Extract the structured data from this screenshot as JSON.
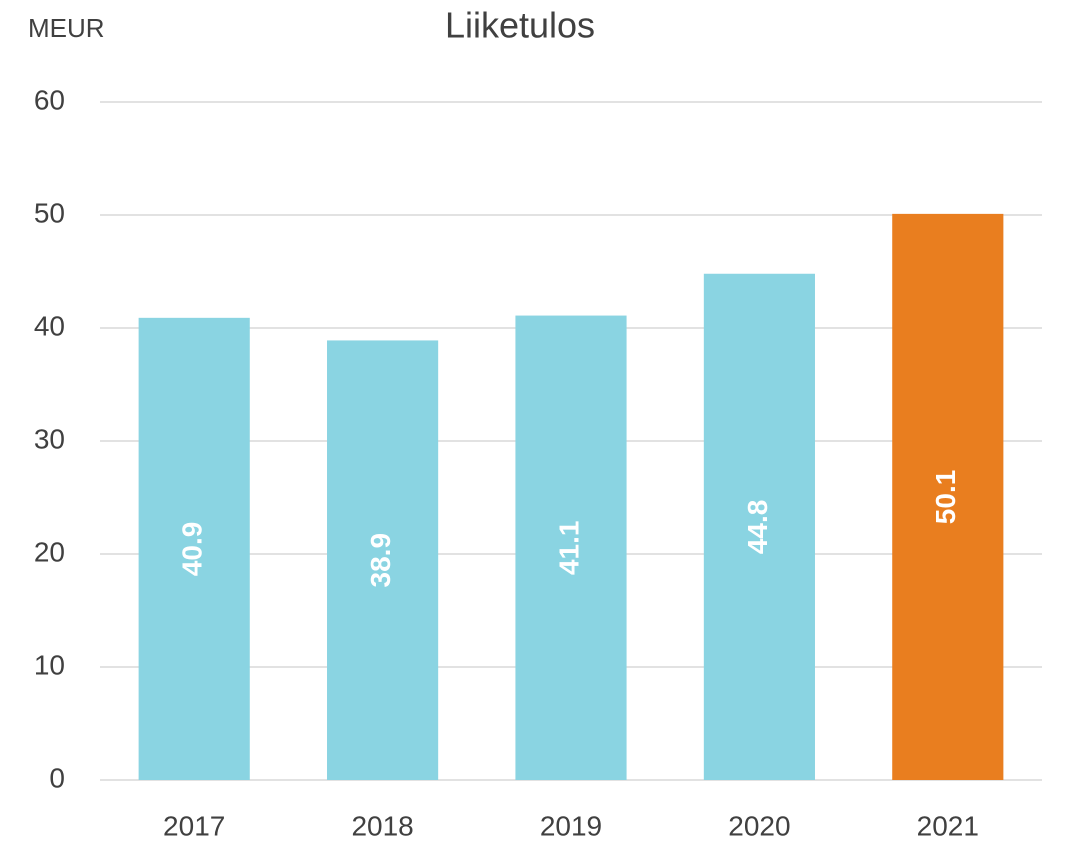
{
  "chart_data": {
    "type": "bar",
    "title": "Liiketulos",
    "y_label": "MEUR",
    "categories": [
      "2017",
      "2018",
      "2019",
      "2020",
      "2021"
    ],
    "values": [
      40.9,
      38.9,
      41.1,
      44.8,
      50.1
    ],
    "colors": [
      "#8ad4e2",
      "#8ad4e2",
      "#8ad4e2",
      "#8ad4e2",
      "#e97e1f"
    ],
    "ylim": [
      0,
      60
    ],
    "yticks": [
      0,
      10,
      20,
      30,
      40,
      50,
      60
    ],
    "grid": true
  }
}
